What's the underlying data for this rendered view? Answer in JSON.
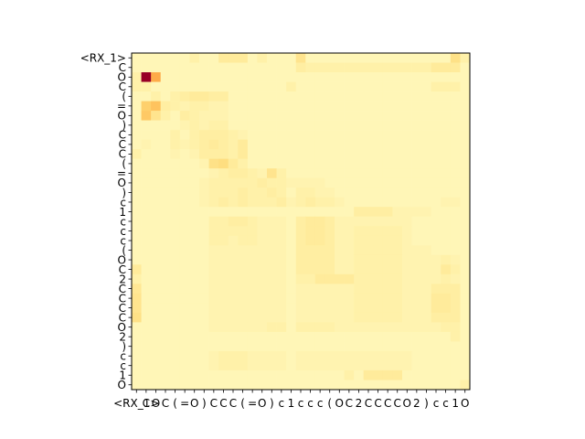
{
  "chart_data": {
    "type": "heatmap",
    "title": "",
    "xlabel": "",
    "ylabel": "",
    "colormap": "YlOrRd",
    "color_stops": [
      "#ffffcc",
      "#ffeda0",
      "#fed976",
      "#feb24c",
      "#fd8d3c",
      "#fc4e2a",
      "#e31a1c",
      "#bd0026",
      "#800026"
    ],
    "x_labels": [
      "<RX_1>",
      "C",
      "O",
      "C",
      "(",
      "=",
      "O",
      ")",
      "C",
      "C",
      "C",
      "(",
      "=",
      "O",
      ")",
      "c",
      "1",
      "c",
      "c",
      "c",
      "(",
      "O",
      "C",
      "2",
      "C",
      "C",
      "C",
      "C",
      "O",
      "2",
      ")",
      "c",
      "c",
      "1",
      "O"
    ],
    "y_labels": [
      "<RX_1>",
      "C",
      "O",
      "C",
      "(",
      "=",
      "O",
      ")",
      "C",
      "C",
      "C",
      "(",
      "=",
      "O",
      ")",
      "c",
      "1",
      "c",
      "c",
      "c",
      "(",
      "O",
      "C",
      "2",
      "C",
      "C",
      "C",
      "C",
      "O",
      "2",
      ")",
      "c",
      "c",
      "1",
      "O"
    ],
    "matrix": [
      [
        0.06,
        0.06,
        0.06,
        0.06,
        0.06,
        0.06,
        0.1,
        0.06,
        0.06,
        0.14,
        0.14,
        0.14,
        0.06,
        0.1,
        0.06,
        0.06,
        0.06,
        0.18,
        0.06,
        0.06,
        0.06,
        0.06,
        0.06,
        0.06,
        0.06,
        0.06,
        0.06,
        0.06,
        0.06,
        0.06,
        0.06,
        0.06,
        0.06,
        0.2,
        0.1
      ],
      [
        0.06,
        0.06,
        0.06,
        0.06,
        0.06,
        0.06,
        0.06,
        0.06,
        0.06,
        0.06,
        0.06,
        0.06,
        0.06,
        0.06,
        0.06,
        0.06,
        0.06,
        0.12,
        0.1,
        0.1,
        0.1,
        0.1,
        0.1,
        0.1,
        0.1,
        0.1,
        0.1,
        0.1,
        0.1,
        0.1,
        0.1,
        0.14,
        0.14,
        0.14,
        0.06
      ],
      [
        0.1,
        0.95,
        0.4,
        0.06,
        0.06,
        0.06,
        0.06,
        0.06,
        0.06,
        0.06,
        0.06,
        0.06,
        0.06,
        0.06,
        0.06,
        0.06,
        0.06,
        0.06,
        0.06,
        0.06,
        0.06,
        0.06,
        0.06,
        0.06,
        0.06,
        0.06,
        0.06,
        0.06,
        0.06,
        0.06,
        0.06,
        0.06,
        0.06,
        0.06,
        0.06
      ],
      [
        0.1,
        0.1,
        0.06,
        0.06,
        0.06,
        0.06,
        0.06,
        0.06,
        0.06,
        0.06,
        0.06,
        0.06,
        0.06,
        0.06,
        0.06,
        0.06,
        0.1,
        0.06,
        0.06,
        0.06,
        0.06,
        0.06,
        0.06,
        0.06,
        0.06,
        0.06,
        0.06,
        0.06,
        0.06,
        0.06,
        0.06,
        0.1,
        0.1,
        0.1,
        0.06
      ],
      [
        0.06,
        0.06,
        0.1,
        0.06,
        0.1,
        0.12,
        0.14,
        0.14,
        0.12,
        0.12,
        0.06,
        0.06,
        0.06,
        0.06,
        0.06,
        0.06,
        0.06,
        0.06,
        0.06,
        0.06,
        0.06,
        0.06,
        0.06,
        0.06,
        0.06,
        0.06,
        0.06,
        0.06,
        0.06,
        0.06,
        0.06,
        0.06,
        0.06,
        0.06,
        0.06
      ],
      [
        0.06,
        0.28,
        0.32,
        0.12,
        0.1,
        0.08,
        0.1,
        0.1,
        0.08,
        0.08,
        0.06,
        0.06,
        0.06,
        0.06,
        0.06,
        0.06,
        0.06,
        0.06,
        0.06,
        0.06,
        0.06,
        0.06,
        0.06,
        0.06,
        0.06,
        0.06,
        0.06,
        0.06,
        0.06,
        0.06,
        0.06,
        0.06,
        0.06,
        0.06,
        0.06
      ],
      [
        0.06,
        0.3,
        0.18,
        0.1,
        0.06,
        0.12,
        0.1,
        0.08,
        0.08,
        0.08,
        0.06,
        0.06,
        0.06,
        0.06,
        0.06,
        0.06,
        0.06,
        0.06,
        0.06,
        0.06,
        0.06,
        0.06,
        0.06,
        0.06,
        0.06,
        0.06,
        0.06,
        0.06,
        0.06,
        0.06,
        0.06,
        0.06,
        0.06,
        0.06,
        0.06
      ],
      [
        0.06,
        0.06,
        0.06,
        0.06,
        0.06,
        0.08,
        0.1,
        0.08,
        0.1,
        0.1,
        0.06,
        0.06,
        0.06,
        0.06,
        0.06,
        0.06,
        0.06,
        0.06,
        0.06,
        0.06,
        0.06,
        0.06,
        0.06,
        0.06,
        0.06,
        0.06,
        0.06,
        0.06,
        0.06,
        0.06,
        0.06,
        0.06,
        0.06,
        0.06,
        0.06
      ],
      [
        0.06,
        0.06,
        0.06,
        0.06,
        0.1,
        0.06,
        0.1,
        0.12,
        0.12,
        0.12,
        0.1,
        0.08,
        0.06,
        0.06,
        0.06,
        0.06,
        0.06,
        0.06,
        0.06,
        0.06,
        0.06,
        0.06,
        0.06,
        0.06,
        0.06,
        0.06,
        0.06,
        0.06,
        0.06,
        0.06,
        0.06,
        0.06,
        0.06,
        0.06,
        0.06
      ],
      [
        0.06,
        0.08,
        0.06,
        0.06,
        0.1,
        0.08,
        0.1,
        0.12,
        0.14,
        0.12,
        0.1,
        0.14,
        0.06,
        0.06,
        0.06,
        0.06,
        0.06,
        0.06,
        0.06,
        0.06,
        0.06,
        0.06,
        0.06,
        0.06,
        0.06,
        0.06,
        0.06,
        0.06,
        0.06,
        0.06,
        0.06,
        0.06,
        0.06,
        0.06,
        0.06
      ],
      [
        0.1,
        0.06,
        0.06,
        0.06,
        0.08,
        0.06,
        0.08,
        0.12,
        0.12,
        0.12,
        0.1,
        0.14,
        0.06,
        0.06,
        0.06,
        0.06,
        0.06,
        0.06,
        0.06,
        0.06,
        0.06,
        0.06,
        0.06,
        0.06,
        0.06,
        0.06,
        0.06,
        0.06,
        0.06,
        0.06,
        0.06,
        0.06,
        0.06,
        0.06,
        0.06
      ],
      [
        0.06,
        0.06,
        0.06,
        0.06,
        0.06,
        0.06,
        0.06,
        0.08,
        0.2,
        0.22,
        0.14,
        0.1,
        0.06,
        0.06,
        0.06,
        0.06,
        0.06,
        0.06,
        0.06,
        0.06,
        0.06,
        0.06,
        0.06,
        0.06,
        0.06,
        0.06,
        0.06,
        0.06,
        0.06,
        0.06,
        0.06,
        0.06,
        0.06,
        0.06,
        0.06
      ],
      [
        0.06,
        0.06,
        0.06,
        0.06,
        0.06,
        0.06,
        0.06,
        0.06,
        0.08,
        0.1,
        0.12,
        0.12,
        0.1,
        0.08,
        0.18,
        0.1,
        0.06,
        0.06,
        0.06,
        0.06,
        0.06,
        0.06,
        0.06,
        0.06,
        0.06,
        0.06,
        0.06,
        0.06,
        0.06,
        0.06,
        0.06,
        0.06,
        0.06,
        0.06,
        0.06
      ],
      [
        0.06,
        0.06,
        0.06,
        0.06,
        0.06,
        0.06,
        0.06,
        0.08,
        0.1,
        0.1,
        0.1,
        0.1,
        0.1,
        0.12,
        0.1,
        0.1,
        0.08,
        0.08,
        0.08,
        0.08,
        0.06,
        0.06,
        0.06,
        0.06,
        0.06,
        0.06,
        0.06,
        0.06,
        0.06,
        0.06,
        0.06,
        0.06,
        0.06,
        0.06,
        0.06
      ],
      [
        0.06,
        0.06,
        0.06,
        0.06,
        0.06,
        0.06,
        0.06,
        0.08,
        0.1,
        0.1,
        0.1,
        0.12,
        0.1,
        0.1,
        0.12,
        0.1,
        0.06,
        0.1,
        0.1,
        0.08,
        0.08,
        0.06,
        0.06,
        0.06,
        0.06,
        0.06,
        0.06,
        0.06,
        0.06,
        0.06,
        0.06,
        0.06,
        0.06,
        0.06,
        0.06
      ],
      [
        0.06,
        0.06,
        0.06,
        0.06,
        0.06,
        0.06,
        0.06,
        0.08,
        0.1,
        0.12,
        0.1,
        0.12,
        0.1,
        0.1,
        0.1,
        0.12,
        0.08,
        0.1,
        0.12,
        0.1,
        0.1,
        0.08,
        0.06,
        0.06,
        0.06,
        0.06,
        0.06,
        0.06,
        0.06,
        0.06,
        0.06,
        0.06,
        0.08,
        0.08,
        0.06
      ],
      [
        0.06,
        0.06,
        0.06,
        0.06,
        0.06,
        0.06,
        0.06,
        0.06,
        0.06,
        0.06,
        0.06,
        0.06,
        0.06,
        0.06,
        0.06,
        0.06,
        0.06,
        0.06,
        0.06,
        0.06,
        0.06,
        0.06,
        0.06,
        0.12,
        0.12,
        0.12,
        0.12,
        0.08,
        0.08,
        0.08,
        0.08,
        0.06,
        0.06,
        0.06,
        0.06
      ],
      [
        0.06,
        0.06,
        0.06,
        0.06,
        0.06,
        0.06,
        0.06,
        0.06,
        0.1,
        0.1,
        0.12,
        0.12,
        0.1,
        0.08,
        0.08,
        0.08,
        0.06,
        0.12,
        0.14,
        0.14,
        0.12,
        0.08,
        0.08,
        0.08,
        0.08,
        0.08,
        0.08,
        0.08,
        0.08,
        0.06,
        0.06,
        0.06,
        0.06,
        0.06,
        0.06
      ],
      [
        0.06,
        0.06,
        0.06,
        0.06,
        0.06,
        0.06,
        0.06,
        0.06,
        0.1,
        0.1,
        0.1,
        0.1,
        0.1,
        0.08,
        0.08,
        0.08,
        0.06,
        0.12,
        0.14,
        0.14,
        0.12,
        0.08,
        0.08,
        0.1,
        0.1,
        0.1,
        0.1,
        0.1,
        0.08,
        0.06,
        0.06,
        0.06,
        0.06,
        0.06,
        0.06
      ],
      [
        0.06,
        0.06,
        0.06,
        0.06,
        0.06,
        0.06,
        0.06,
        0.06,
        0.1,
        0.1,
        0.08,
        0.1,
        0.1,
        0.08,
        0.08,
        0.08,
        0.06,
        0.12,
        0.14,
        0.14,
        0.12,
        0.08,
        0.08,
        0.1,
        0.1,
        0.1,
        0.1,
        0.1,
        0.08,
        0.06,
        0.06,
        0.06,
        0.06,
        0.06,
        0.06
      ],
      [
        0.06,
        0.06,
        0.06,
        0.06,
        0.06,
        0.06,
        0.06,
        0.06,
        0.08,
        0.08,
        0.08,
        0.08,
        0.08,
        0.08,
        0.08,
        0.08,
        0.06,
        0.12,
        0.12,
        0.12,
        0.12,
        0.08,
        0.08,
        0.1,
        0.1,
        0.1,
        0.1,
        0.1,
        0.08,
        0.08,
        0.08,
        0.06,
        0.06,
        0.06,
        0.06
      ],
      [
        0.06,
        0.06,
        0.06,
        0.06,
        0.06,
        0.06,
        0.06,
        0.06,
        0.08,
        0.08,
        0.08,
        0.08,
        0.08,
        0.08,
        0.08,
        0.08,
        0.06,
        0.12,
        0.12,
        0.12,
        0.12,
        0.08,
        0.08,
        0.1,
        0.1,
        0.1,
        0.1,
        0.1,
        0.08,
        0.08,
        0.08,
        0.08,
        0.1,
        0.08,
        0.06
      ],
      [
        0.14,
        0.06,
        0.06,
        0.06,
        0.06,
        0.06,
        0.06,
        0.06,
        0.08,
        0.08,
        0.08,
        0.08,
        0.08,
        0.08,
        0.08,
        0.08,
        0.06,
        0.12,
        0.12,
        0.12,
        0.12,
        0.08,
        0.08,
        0.1,
        0.1,
        0.1,
        0.1,
        0.1,
        0.08,
        0.08,
        0.08,
        0.08,
        0.14,
        0.1,
        0.06
      ],
      [
        0.1,
        0.06,
        0.06,
        0.06,
        0.06,
        0.06,
        0.06,
        0.06,
        0.08,
        0.08,
        0.08,
        0.08,
        0.08,
        0.08,
        0.08,
        0.08,
        0.06,
        0.1,
        0.1,
        0.14,
        0.14,
        0.14,
        0.14,
        0.1,
        0.1,
        0.1,
        0.1,
        0.1,
        0.08,
        0.08,
        0.08,
        0.08,
        0.1,
        0.08,
        0.06
      ],
      [
        0.16,
        0.06,
        0.06,
        0.06,
        0.06,
        0.06,
        0.06,
        0.06,
        0.08,
        0.08,
        0.08,
        0.08,
        0.08,
        0.08,
        0.08,
        0.08,
        0.06,
        0.08,
        0.08,
        0.08,
        0.08,
        0.08,
        0.08,
        0.1,
        0.1,
        0.1,
        0.1,
        0.1,
        0.08,
        0.08,
        0.08,
        0.12,
        0.12,
        0.12,
        0.06
      ],
      [
        0.18,
        0.06,
        0.06,
        0.06,
        0.06,
        0.06,
        0.06,
        0.06,
        0.08,
        0.08,
        0.08,
        0.08,
        0.08,
        0.08,
        0.08,
        0.08,
        0.06,
        0.08,
        0.08,
        0.08,
        0.08,
        0.08,
        0.08,
        0.1,
        0.1,
        0.1,
        0.1,
        0.1,
        0.08,
        0.08,
        0.08,
        0.14,
        0.14,
        0.12,
        0.06
      ],
      [
        0.18,
        0.06,
        0.06,
        0.06,
        0.06,
        0.06,
        0.06,
        0.06,
        0.08,
        0.08,
        0.08,
        0.08,
        0.08,
        0.08,
        0.08,
        0.08,
        0.06,
        0.08,
        0.08,
        0.08,
        0.08,
        0.08,
        0.08,
        0.1,
        0.1,
        0.1,
        0.1,
        0.1,
        0.08,
        0.08,
        0.08,
        0.14,
        0.14,
        0.12,
        0.06
      ],
      [
        0.2,
        0.06,
        0.06,
        0.06,
        0.06,
        0.06,
        0.06,
        0.06,
        0.08,
        0.08,
        0.08,
        0.08,
        0.08,
        0.08,
        0.08,
        0.08,
        0.06,
        0.08,
        0.08,
        0.08,
        0.08,
        0.08,
        0.08,
        0.1,
        0.1,
        0.1,
        0.1,
        0.1,
        0.08,
        0.08,
        0.08,
        0.12,
        0.12,
        0.12,
        0.06
      ],
      [
        0.06,
        0.06,
        0.06,
        0.06,
        0.06,
        0.06,
        0.06,
        0.06,
        0.08,
        0.08,
        0.08,
        0.08,
        0.08,
        0.08,
        0.1,
        0.1,
        0.06,
        0.1,
        0.1,
        0.1,
        0.1,
        0.08,
        0.08,
        0.08,
        0.08,
        0.08,
        0.08,
        0.08,
        0.08,
        0.08,
        0.08,
        0.08,
        0.1,
        0.1,
        0.06
      ],
      [
        0.06,
        0.06,
        0.06,
        0.06,
        0.06,
        0.06,
        0.06,
        0.06,
        0.06,
        0.06,
        0.06,
        0.06,
        0.06,
        0.06,
        0.06,
        0.06,
        0.06,
        0.06,
        0.06,
        0.06,
        0.06,
        0.06,
        0.06,
        0.06,
        0.06,
        0.06,
        0.06,
        0.06,
        0.06,
        0.06,
        0.06,
        0.06,
        0.06,
        0.1,
        0.06
      ],
      [
        0.06,
        0.06,
        0.06,
        0.06,
        0.06,
        0.06,
        0.06,
        0.06,
        0.06,
        0.06,
        0.06,
        0.06,
        0.06,
        0.06,
        0.06,
        0.06,
        0.06,
        0.06,
        0.06,
        0.06,
        0.06,
        0.06,
        0.06,
        0.06,
        0.06,
        0.06,
        0.06,
        0.06,
        0.06,
        0.06,
        0.06,
        0.06,
        0.06,
        0.06,
        0.06
      ],
      [
        0.06,
        0.06,
        0.06,
        0.06,
        0.06,
        0.06,
        0.06,
        0.06,
        0.08,
        0.1,
        0.1,
        0.1,
        0.08,
        0.08,
        0.08,
        0.08,
        0.06,
        0.08,
        0.08,
        0.08,
        0.08,
        0.08,
        0.08,
        0.08,
        0.08,
        0.08,
        0.08,
        0.08,
        0.08,
        0.06,
        0.06,
        0.06,
        0.06,
        0.06,
        0.06
      ],
      [
        0.06,
        0.06,
        0.06,
        0.06,
        0.06,
        0.06,
        0.06,
        0.06,
        0.08,
        0.1,
        0.1,
        0.1,
        0.08,
        0.08,
        0.08,
        0.08,
        0.06,
        0.08,
        0.08,
        0.08,
        0.08,
        0.08,
        0.08,
        0.08,
        0.08,
        0.08,
        0.08,
        0.08,
        0.08,
        0.06,
        0.06,
        0.06,
        0.06,
        0.06,
        0.06
      ],
      [
        0.06,
        0.06,
        0.06,
        0.06,
        0.06,
        0.06,
        0.06,
        0.06,
        0.06,
        0.06,
        0.06,
        0.06,
        0.06,
        0.06,
        0.06,
        0.06,
        0.06,
        0.06,
        0.06,
        0.06,
        0.06,
        0.06,
        0.1,
        0.06,
        0.14,
        0.14,
        0.14,
        0.14,
        0.06,
        0.06,
        0.06,
        0.06,
        0.06,
        0.06,
        0.06
      ],
      [
        0.06,
        0.06,
        0.06,
        0.06,
        0.06,
        0.06,
        0.06,
        0.06,
        0.06,
        0.06,
        0.06,
        0.06,
        0.06,
        0.06,
        0.06,
        0.06,
        0.06,
        0.06,
        0.06,
        0.06,
        0.06,
        0.06,
        0.06,
        0.06,
        0.06,
        0.06,
        0.06,
        0.06,
        0.06,
        0.06,
        0.06,
        0.06,
        0.06,
        0.06,
        0.1
      ]
    ],
    "grid": false,
    "legend": "none"
  }
}
